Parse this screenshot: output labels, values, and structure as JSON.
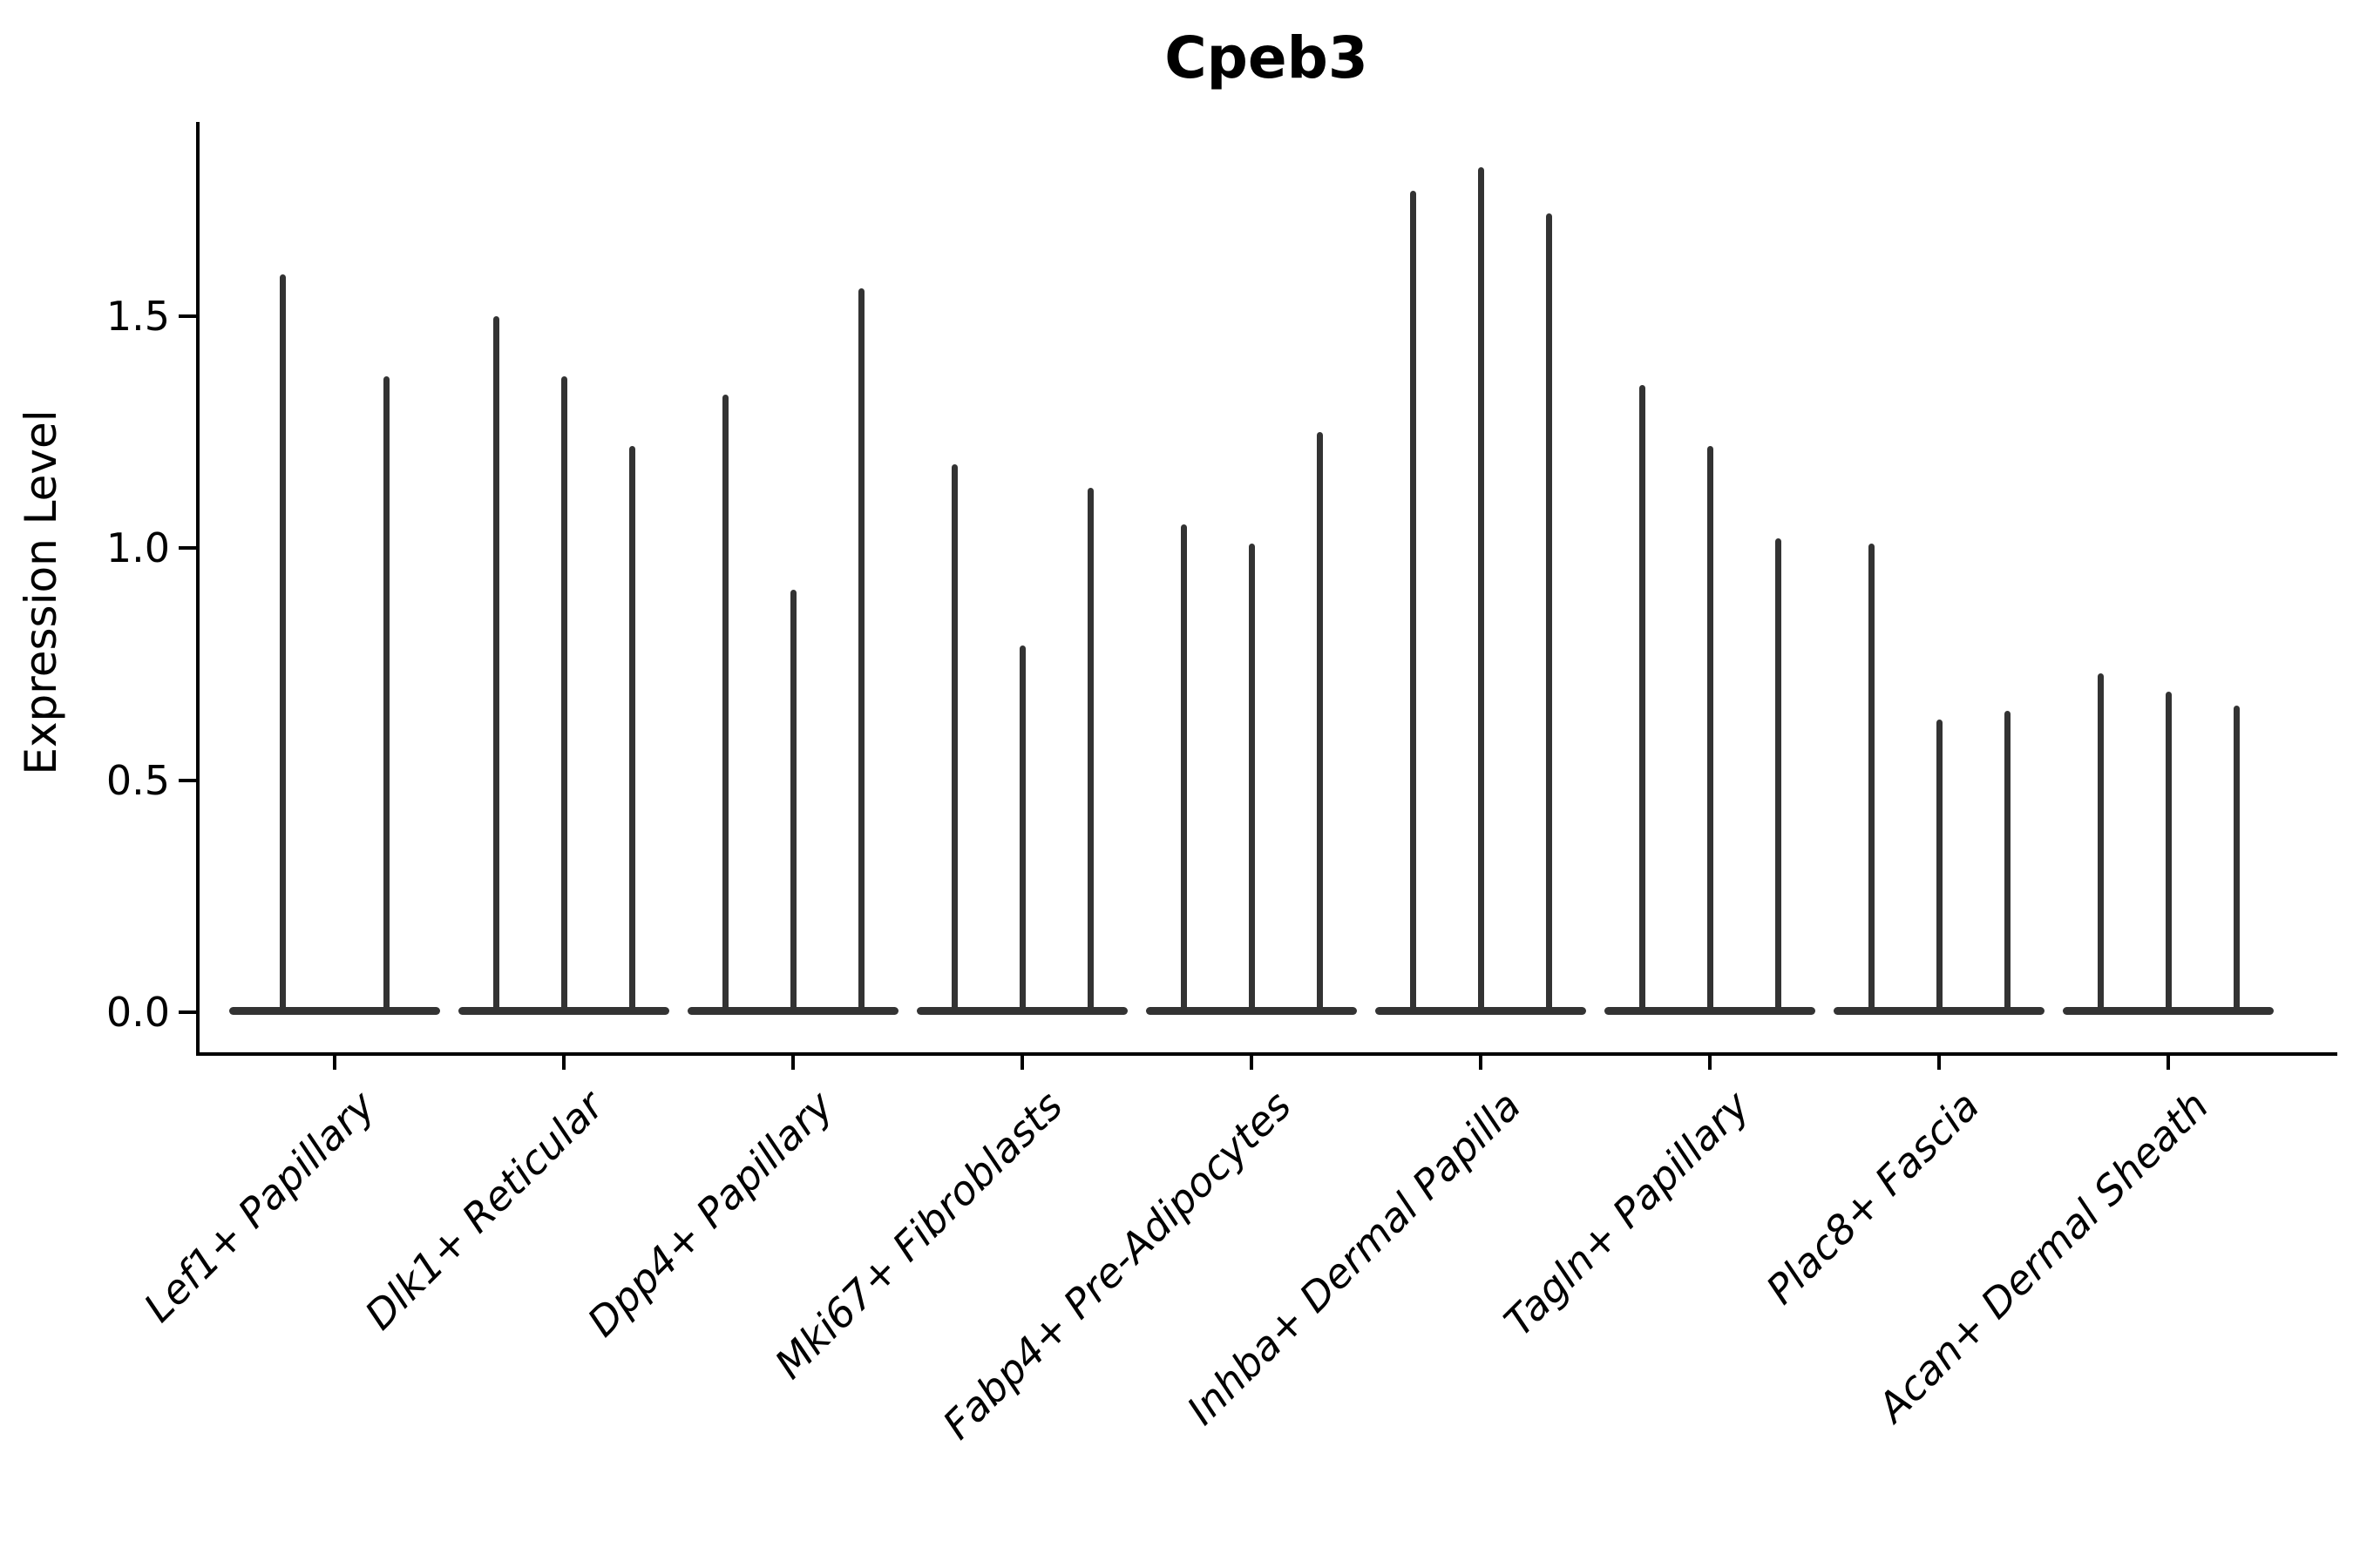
{
  "title": "Cpeb3",
  "axes": {
    "ylabel": "Expression Level",
    "ytick_labels": [
      "0.0",
      "0.5",
      "1.0",
      "1.5"
    ]
  },
  "chart_data": {
    "type": "violin",
    "title": "Cpeb3",
    "xlabel": "",
    "ylabel": "Expression Level",
    "ylim": [
      -0.09,
      1.92
    ],
    "yticks": [
      0.0,
      0.5,
      1.0,
      1.5
    ],
    "grid": false,
    "legend": "none",
    "violin_color": "#333333",
    "description": "Violin plot of Cpeb3 expression; each cell-type group contains 2-3 extremely thin violins (spikes) rising from a flat base at 0 to the group's maximum expression values.",
    "groups": [
      {
        "label": "Lef1+ Papillary",
        "spike_maxima": [
          1.59,
          1.37
        ]
      },
      {
        "label": "Dlk1+ Reticular",
        "spike_maxima": [
          1.5,
          1.37,
          1.22
        ]
      },
      {
        "label": "Dpp4+ Papillary",
        "spike_maxima": [
          1.33,
          0.91,
          1.56
        ]
      },
      {
        "label": "Mki67+ Fibroblasts",
        "spike_maxima": [
          1.18,
          0.79,
          1.13
        ]
      },
      {
        "label": "Fabp4+ Pre-Adipocytes",
        "spike_maxima": [
          1.05,
          1.01,
          1.25
        ]
      },
      {
        "label": "Inhba+ Dermal Papilla",
        "spike_maxima": [
          1.77,
          1.82,
          1.72
        ]
      },
      {
        "label": "Tagln+ Papillary",
        "spike_maxima": [
          1.35,
          1.22,
          1.02
        ]
      },
      {
        "label": "Plac8+ Fascia",
        "spike_maxima": [
          1.01,
          0.63,
          0.65
        ]
      },
      {
        "label": "Acan+ Dermal Sheath",
        "spike_maxima": [
          0.73,
          0.69,
          0.66
        ]
      }
    ]
  }
}
